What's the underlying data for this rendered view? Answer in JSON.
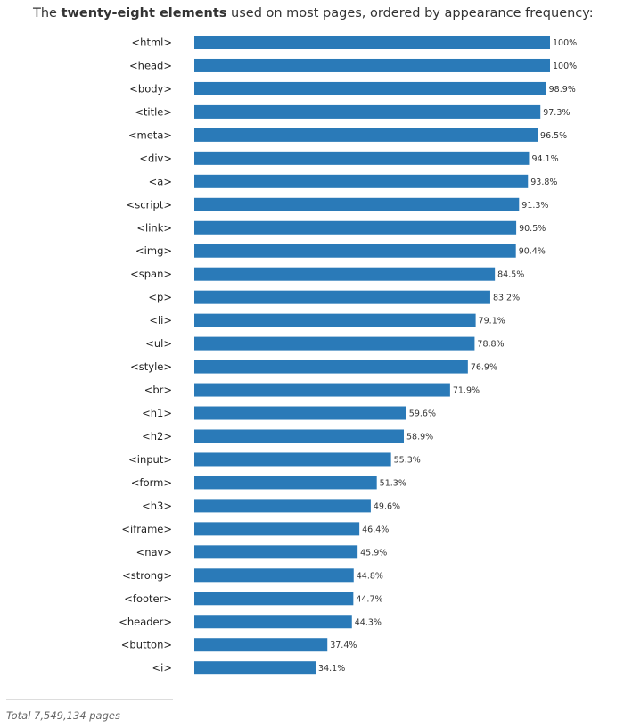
{
  "title": {
    "prefix": "The ",
    "bold": "twenty-eight elements",
    "suffix": " used on most pages, ordered by appearance frequency:"
  },
  "footer": "Total 7,549,134 pages",
  "colors": {
    "bar": "#2a7ab8"
  },
  "chart_data": {
    "type": "bar",
    "orientation": "horizontal",
    "title": "The twenty-eight elements used on most pages, ordered by appearance frequency:",
    "xlim": [
      0,
      100
    ],
    "unit": "%",
    "categories": [
      "<html>",
      "<head>",
      "<body>",
      "<title>",
      "<meta>",
      "<div>",
      "<a>",
      "<script>",
      "<link>",
      "<img>",
      "<span>",
      "<p>",
      "<li>",
      "<ul>",
      "<style>",
      "<br>",
      "<h1>",
      "<h2>",
      "<input>",
      "<form>",
      "<h3>",
      "<iframe>",
      "<nav>",
      "<strong>",
      "<footer>",
      "<header>",
      "<button>",
      "<i>"
    ],
    "values": [
      100,
      100,
      98.9,
      97.3,
      96.5,
      94.1,
      93.8,
      91.3,
      90.5,
      90.4,
      84.5,
      83.2,
      79.1,
      78.8,
      76.9,
      71.9,
      59.6,
      58.9,
      55.3,
      51.3,
      49.6,
      46.4,
      45.9,
      44.8,
      44.7,
      44.3,
      37.4,
      34.1
    ],
    "value_labels": [
      "100%",
      "100%",
      "98.9%",
      "97.3%",
      "96.5%",
      "94.1%",
      "93.8%",
      "91.3%",
      "90.5%",
      "90.4%",
      "84.5%",
      "83.2%",
      "79.1%",
      "78.8%",
      "76.9%",
      "71.9%",
      "59.6%",
      "58.9%",
      "55.3%",
      "51.3%",
      "49.6%",
      "46.4%",
      "45.9%",
      "44.8%",
      "44.7%",
      "44.3%",
      "37.4%",
      "34.1%"
    ],
    "grid": false,
    "legend": "none"
  }
}
